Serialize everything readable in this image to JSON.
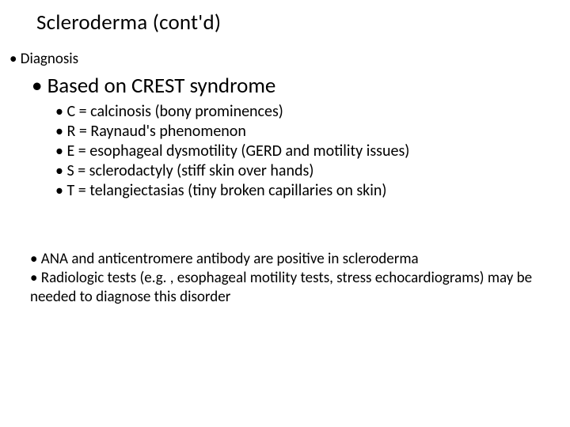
{
  "title_fontsize": 27,
  "lvl1_fontsize": 19,
  "lvl2_fontsize": 27,
  "lvl3_fontsize": 20,
  "background_color": "#ffffff",
  "text_color": "#000000",
  "font_family": "Calibri, Arial, sans-serif",
  "title": "Scleroderma (cont'd)",
  "lvl1_item": "Diagnosis",
  "lvl2_item": "Based on CREST syndrome",
  "crest": [
    "C = calcinosis (bony prominences)",
    "R = Raynaud's phenomenon",
    "E = esophageal dysmotility (GERD and motility issues)",
    "S = sclerodactyly (stiff skin over hands)",
    "T = telangiectasias (tiny broken capillaries on skin)"
  ],
  "notes": [
    "ANA and anticentromere antibody are positive in scleroderma",
    "Radiologic tests (e.g. , esophageal motility tests, stress echocardiograms) may be needed to diagnose this disorder"
  ]
}
